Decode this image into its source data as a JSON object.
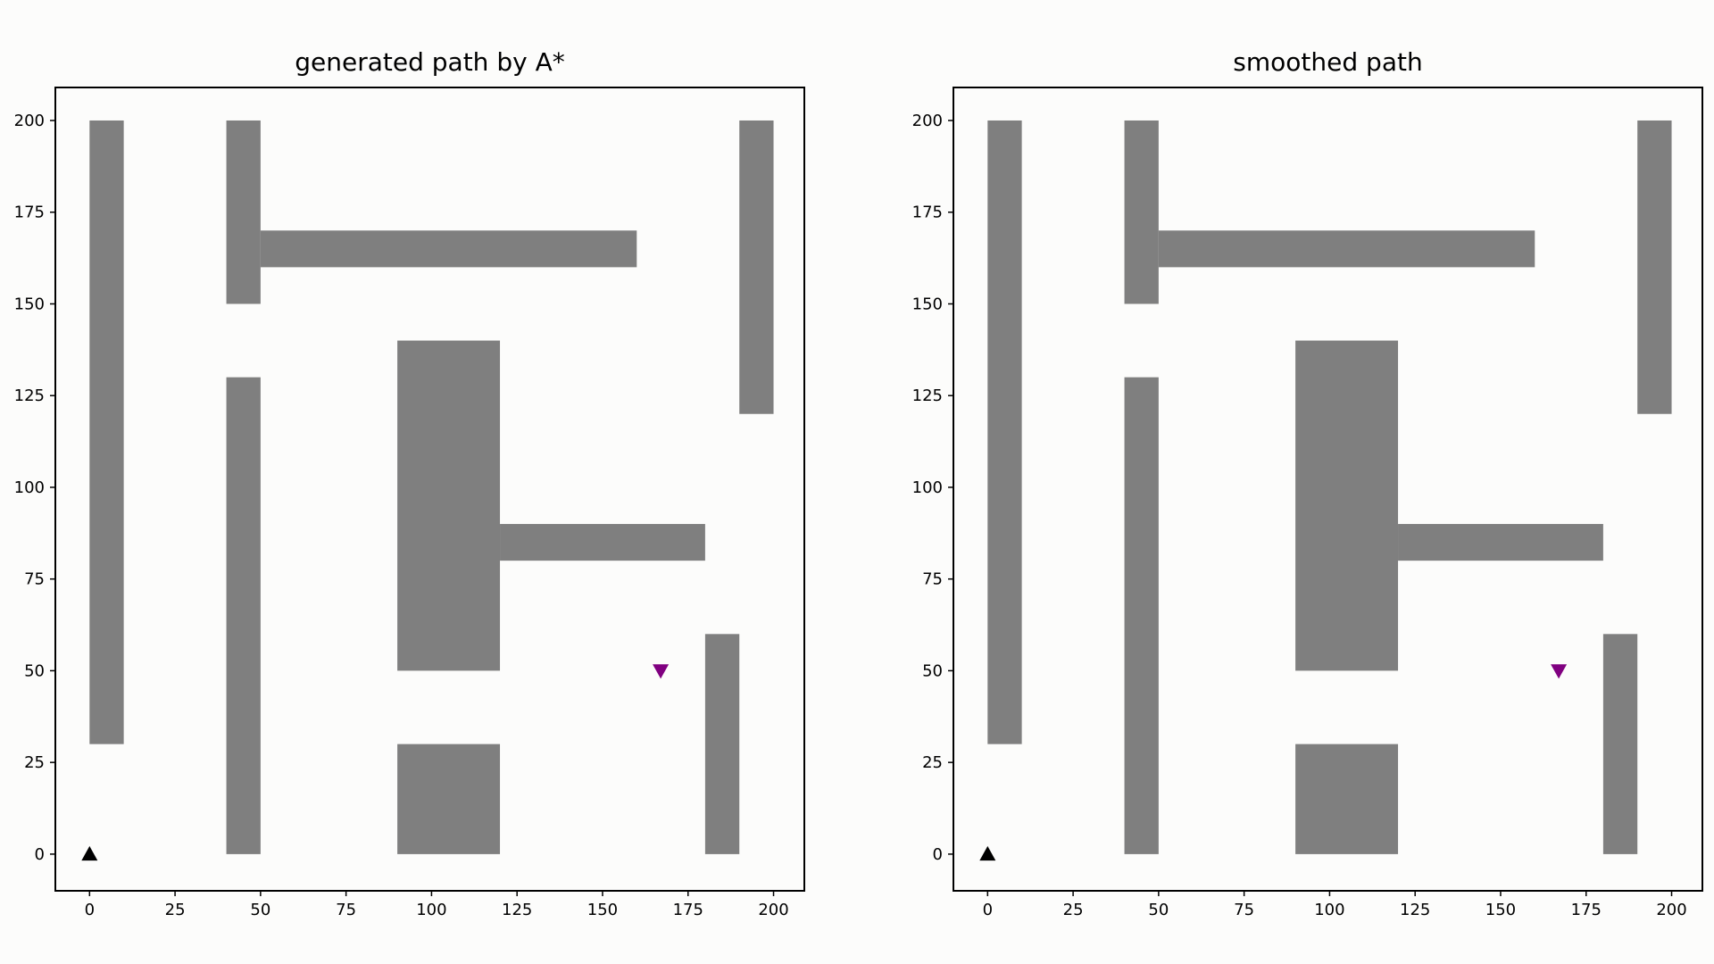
{
  "chart_data": [
    {
      "type": "scatter",
      "title": "generated path by A*",
      "xlabel": "",
      "ylabel": "",
      "xlim": [
        -10,
        209
      ],
      "ylim": [
        -10,
        209
      ],
      "xticks": [
        0,
        25,
        50,
        75,
        100,
        125,
        150,
        175,
        200
      ],
      "yticks": [
        0,
        25,
        50,
        75,
        100,
        125,
        150,
        175,
        200
      ],
      "grid": false,
      "obstacle_color": "#7f7f7f",
      "obstacles": [
        {
          "x0": 0,
          "x1": 10,
          "y0": 30,
          "y1": 200
        },
        {
          "x0": 40,
          "x1": 50,
          "y0": 150,
          "y1": 200
        },
        {
          "x0": 50,
          "x1": 160,
          "y0": 160,
          "y1": 170
        },
        {
          "x0": 190,
          "x1": 200,
          "y0": 120,
          "y1": 200
        },
        {
          "x0": 40,
          "x1": 50,
          "y0": 0,
          "y1": 130
        },
        {
          "x0": 90,
          "x1": 120,
          "y0": 50,
          "y1": 140
        },
        {
          "x0": 120,
          "x1": 180,
          "y0": 80,
          "y1": 90
        },
        {
          "x0": 90,
          "x1": 120,
          "y0": 0,
          "y1": 30
        },
        {
          "x0": 180,
          "x1": 190,
          "y0": 0,
          "y1": 60
        }
      ],
      "markers": [
        {
          "name": "start",
          "x": 0,
          "y": 0,
          "shape": "triangle-up",
          "color": "#000000"
        },
        {
          "name": "goal",
          "x": 167,
          "y": 50,
          "shape": "triangle-down",
          "color": "#800080"
        }
      ]
    },
    {
      "type": "scatter",
      "title": "smoothed path",
      "xlabel": "",
      "ylabel": "",
      "xlim": [
        -10,
        209
      ],
      "ylim": [
        -10,
        209
      ],
      "xticks": [
        0,
        25,
        50,
        75,
        100,
        125,
        150,
        175,
        200
      ],
      "yticks": [
        0,
        25,
        50,
        75,
        100,
        125,
        150,
        175,
        200
      ],
      "grid": false,
      "obstacle_color": "#7f7f7f",
      "obstacles": [
        {
          "x0": 0,
          "x1": 10,
          "y0": 30,
          "y1": 200
        },
        {
          "x0": 40,
          "x1": 50,
          "y0": 150,
          "y1": 200
        },
        {
          "x0": 50,
          "x1": 160,
          "y0": 160,
          "y1": 170
        },
        {
          "x0": 190,
          "x1": 200,
          "y0": 120,
          "y1": 200
        },
        {
          "x0": 40,
          "x1": 50,
          "y0": 0,
          "y1": 130
        },
        {
          "x0": 90,
          "x1": 120,
          "y0": 50,
          "y1": 140
        },
        {
          "x0": 120,
          "x1": 180,
          "y0": 80,
          "y1": 90
        },
        {
          "x0": 90,
          "x1": 120,
          "y0": 0,
          "y1": 30
        },
        {
          "x0": 180,
          "x1": 190,
          "y0": 0,
          "y1": 60
        }
      ],
      "markers": [
        {
          "name": "start",
          "x": 0,
          "y": 0,
          "shape": "triangle-up",
          "color": "#000000"
        },
        {
          "name": "goal",
          "x": 167,
          "y": 50,
          "shape": "triangle-down",
          "color": "#800080"
        }
      ]
    }
  ]
}
